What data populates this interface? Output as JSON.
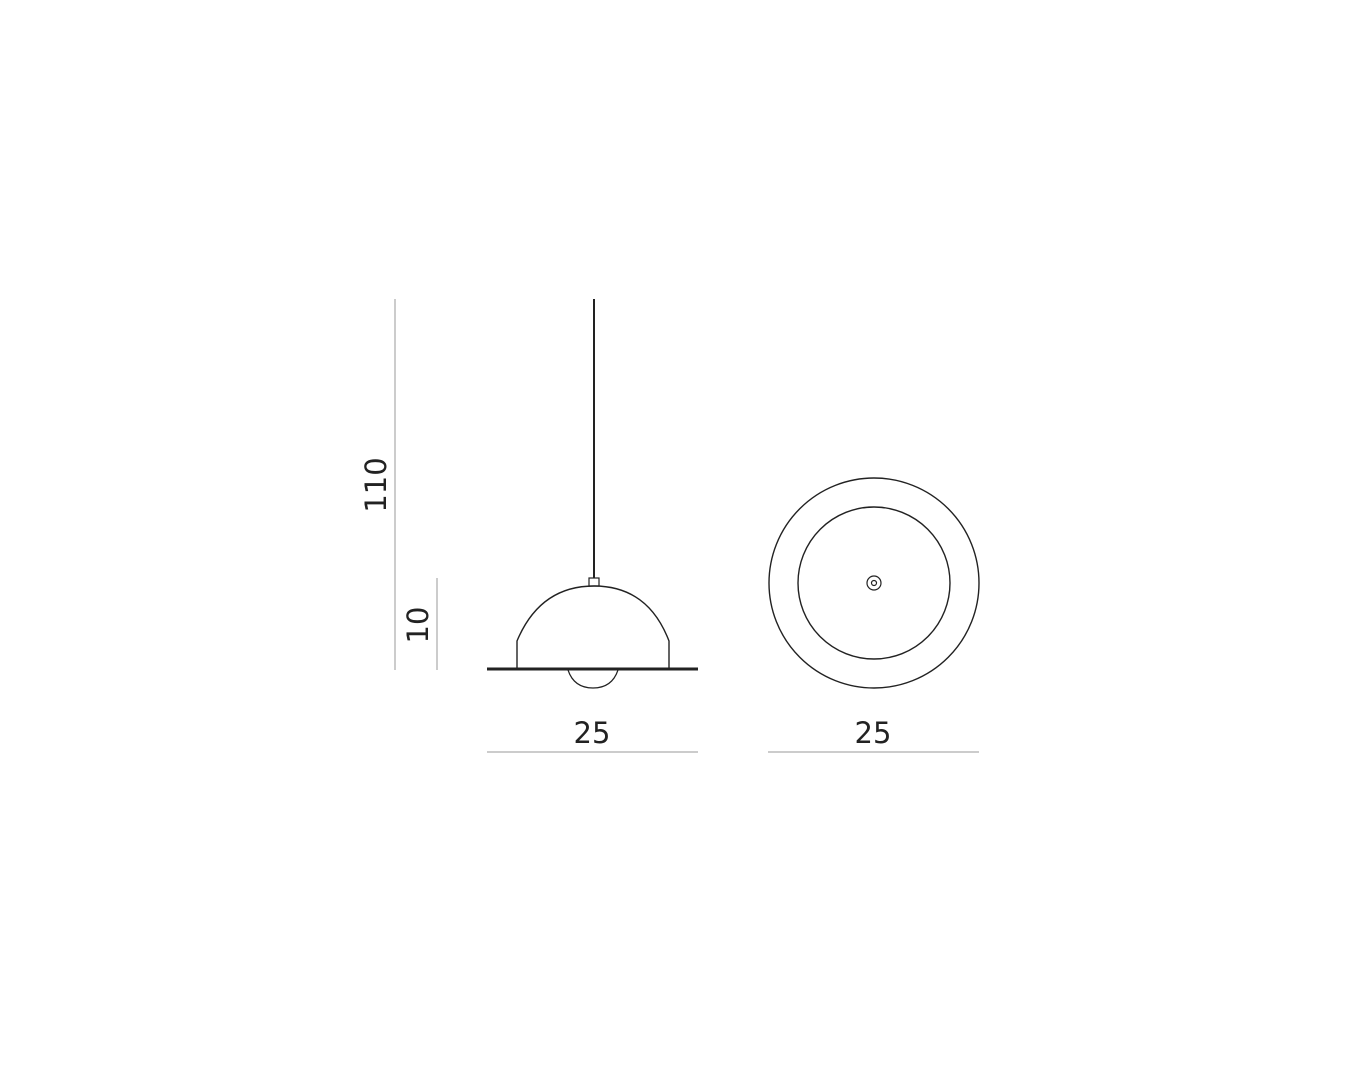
{
  "dimensions": {
    "total_height": "110",
    "shade_height": "10",
    "side_view_width": "25",
    "top_view_width": "25"
  },
  "colors": {
    "line": "#222222",
    "dimension_line": "#9a9a9a",
    "background": "#ffffff"
  }
}
